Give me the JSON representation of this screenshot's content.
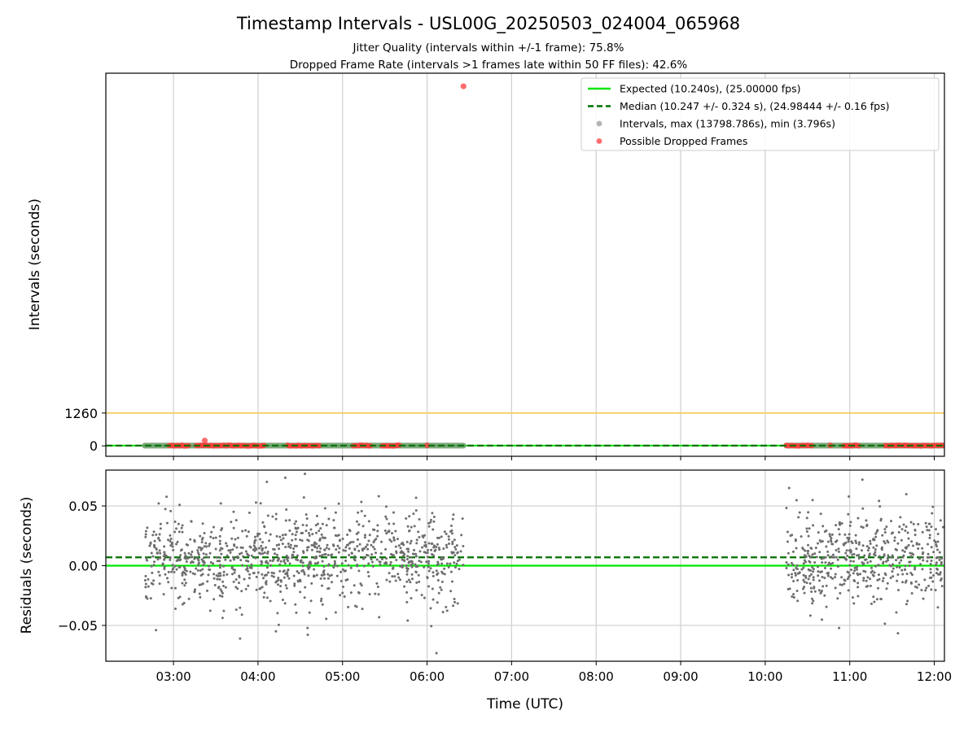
{
  "figure": {
    "title": "Timestamp Intervals - USL00G_20250503_024004_065968",
    "subtitle_1": "Jitter Quality (intervals within +/-1 frame): 75.8%",
    "subtitle_2": "Dropped Frame Rate (intervals >1 frames late within 50 FF files): 42.6%"
  },
  "chart_data": [
    {
      "type": "scatter",
      "panel": "intervals",
      "ylabel": "Intervals (seconds)",
      "xlabel": "",
      "ylim": [
        -400,
        14300
      ],
      "yticks": [
        0,
        1260
      ],
      "ytick_labels": [
        "0",
        "1260"
      ],
      "xlim_hours": [
        2.2,
        12.12
      ],
      "reference_lines": [
        {
          "name": "Expected (10.240s), (25.00000 fps)",
          "y": 10.24,
          "color": "#00e600",
          "style": "solid"
        },
        {
          "name": "Median (10.247 +/- 0.324 s), (24.98444 +/- 0.16 fps)",
          "y": 10.247,
          "color": "#007000",
          "style": "dashed"
        },
        {
          "name": "",
          "y": 1260,
          "color": "#f6cf6e",
          "style": "solid"
        }
      ],
      "legend": {
        "placement": "top-right",
        "entries": [
          {
            "label": "Expected (10.240s), (25.00000 fps)",
            "kind": "line",
            "color": "#00e600"
          },
          {
            "label": "Median (10.247 +/- 0.324 s), (24.98444 +/- 0.16 fps)",
            "kind": "dashed",
            "color": "#007000"
          },
          {
            "label": "Intervals, max (13798.786s), min (3.796s)",
            "kind": "marker",
            "color": "#808080"
          },
          {
            "label": "Possible Dropped Frames",
            "kind": "marker",
            "color": "#ff3b3b"
          }
        ]
      },
      "interval_segments_hours": [
        [
          2.66,
          6.43
        ],
        [
          10.25,
          12.12
        ]
      ],
      "dropped_frame_ranges_hours": [
        [
          2.95,
          3.18
        ],
        [
          3.27,
          3.4
        ],
        [
          3.42,
          4.08
        ],
        [
          4.35,
          4.75
        ],
        [
          5.13,
          5.35
        ],
        [
          5.47,
          5.68
        ],
        [
          10.25,
          10.56
        ],
        [
          10.93,
          11.13
        ],
        [
          11.42,
          11.6
        ],
        [
          11.62,
          12.0
        ],
        [
          12.03,
          12.12
        ]
      ],
      "highlight_points": [
        {
          "x_hours": 6.43,
          "y": 13798.786,
          "color": "#ff3b3b"
        },
        {
          "x_hours": 3.37,
          "y": 200,
          "color": "#ff3b3b"
        },
        {
          "x_hours": 6.0,
          "y": 20,
          "color": "#ff3b3b"
        },
        {
          "x_hours": 10.77,
          "y": 20,
          "color": "#ff3b3b"
        }
      ],
      "grid": "x"
    },
    {
      "type": "scatter",
      "panel": "residuals",
      "ylabel": "Residuals (seconds)",
      "xlabel": "Time (UTC)",
      "ylim": [
        -0.08,
        0.08
      ],
      "yticks": [
        0.05,
        0.0,
        -0.05
      ],
      "ytick_labels": [
        "0.05",
        "0.00",
        "−0.05"
      ],
      "xlim_hours": [
        2.2,
        12.12
      ],
      "xticks_hours": [
        3,
        4,
        5,
        6,
        7,
        8,
        9,
        10,
        11,
        12
      ],
      "xtick_labels": [
        "03:00",
        "04:00",
        "05:00",
        "06:00",
        "07:00",
        "08:00",
        "09:00",
        "10:00",
        "11:00",
        "12:00"
      ],
      "reference_lines": [
        {
          "name": "Expected",
          "y": 0.0,
          "color": "#00e600",
          "style": "solid"
        },
        {
          "name": "Median",
          "y": 0.007,
          "color": "#007000",
          "style": "dashed"
        }
      ],
      "residual_segments": [
        {
          "x_range_hours": [
            2.66,
            6.43
          ],
          "center": 0.006,
          "spread": 0.019,
          "count": 1050
        },
        {
          "x_range_hours": [
            10.25,
            12.12
          ],
          "center": 0.006,
          "spread": 0.019,
          "count": 520
        }
      ],
      "point_color": "#6e6e6e",
      "grid": "both"
    }
  ]
}
